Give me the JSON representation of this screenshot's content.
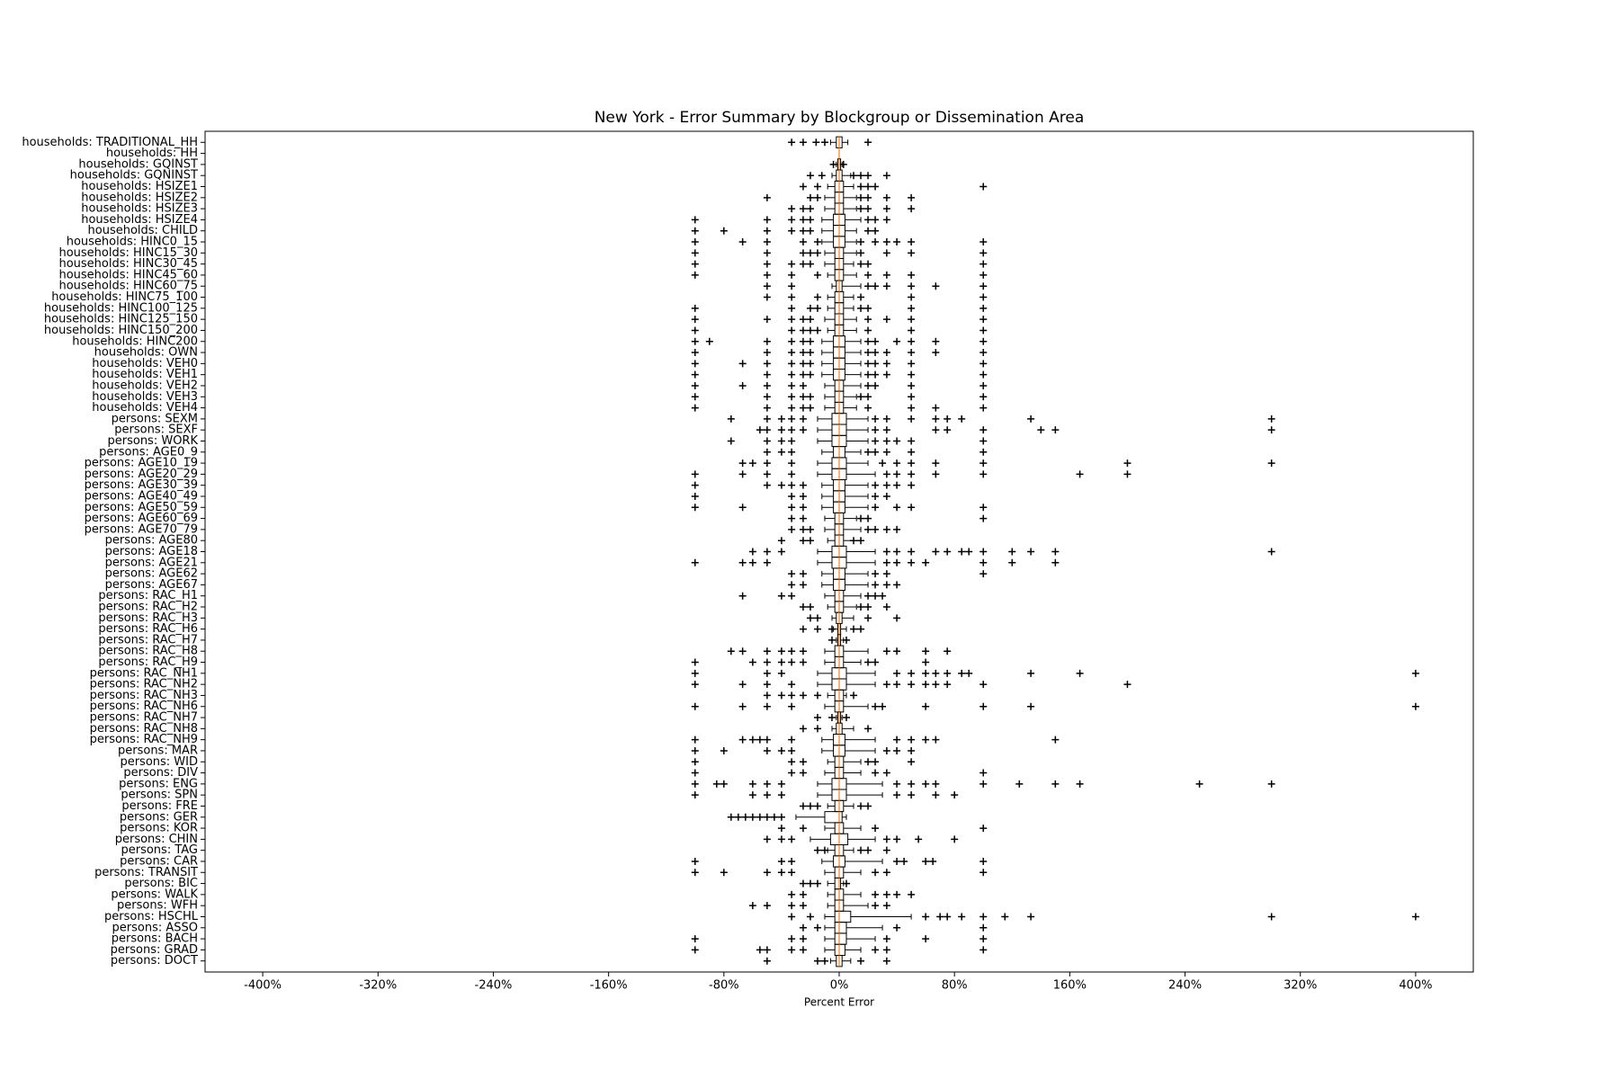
{
  "chart_data": {
    "type": "boxplot",
    "orientation": "horizontal",
    "title": "New York - Error Summary by Blockgroup or Dissemination Area",
    "xlabel": "Percent Error",
    "xlim": [
      -440,
      440
    ],
    "xticks": [
      {
        "value": -400,
        "label": "-400%"
      },
      {
        "value": -320,
        "label": "-320%"
      },
      {
        "value": -240,
        "label": "-240%"
      },
      {
        "value": -160,
        "label": "-160%"
      },
      {
        "value": -80,
        "label": "-80%"
      },
      {
        "value": 0,
        "label": "0%"
      },
      {
        "value": 80,
        "label": "80%"
      },
      {
        "value": 160,
        "label": "160%"
      },
      {
        "value": 240,
        "label": "240%"
      },
      {
        "value": 320,
        "label": "320%"
      },
      {
        "value": 400,
        "label": "400%"
      }
    ],
    "box_color": "#000000",
    "median_color": "#ff7f0e",
    "flier_color": "#000000",
    "categories": [
      "households: TRADITIONAL_HH",
      "households: HH",
      "households: GQINST",
      "households: GQNINST",
      "households: HSIZE1",
      "households: HSIZE2",
      "households: HSIZE3",
      "households: HSIZE4",
      "households: CHILD",
      "households: HINC0_15",
      "households: HINC15_30",
      "households: HINC30_45",
      "households: HINC45_60",
      "households: HINC60_75",
      "households: HINC75_100",
      "households: HINC100_125",
      "households: HINC125_150",
      "households: HINC150_200",
      "households: HINC200",
      "households: OWN",
      "households: VEH0",
      "households: VEH1",
      "households: VEH2",
      "households: VEH3",
      "households: VEH4",
      "persons: SEXM",
      "persons: SEXF",
      "persons: WORK",
      "persons: AGE0_9",
      "persons: AGE10_19",
      "persons: AGE20_29",
      "persons: AGE30_39",
      "persons: AGE40_49",
      "persons: AGE50_59",
      "persons: AGE60_69",
      "persons: AGE70_79",
      "persons: AGE80",
      "persons: AGE18",
      "persons: AGE21",
      "persons: AGE62",
      "persons: AGE67",
      "persons: RAC_H1",
      "persons: RAC_H2",
      "persons: RAC_H3",
      "persons: RAC_H6",
      "persons: RAC_H7",
      "persons: RAC_H8",
      "persons: RAC_H9",
      "persons: RAC_NH1",
      "persons: RAC_NH2",
      "persons: RAC_NH3",
      "persons: RAC_NH6",
      "persons: RAC_NH7",
      "persons: RAC_NH8",
      "persons: RAC_NH9",
      "persons: MAR",
      "persons: WID",
      "persons: DIV",
      "persons: ENG",
      "persons: SPN",
      "persons: FRE",
      "persons: GER",
      "persons: KOR",
      "persons: CHIN",
      "persons: TAG",
      "persons: CAR",
      "persons: TRANSIT",
      "persons: BIC",
      "persons: WALK",
      "persons: WFH",
      "persons: HSCHL",
      "persons: ASSO",
      "persons: BACH",
      "persons: GRAD",
      "persons: DOCT"
    ],
    "whislo": [
      -6,
      0,
      -2,
      -5,
      -8,
      -10,
      -10,
      -12,
      -12,
      -12,
      -10,
      -10,
      -8,
      -5,
      -8,
      -8,
      -10,
      -8,
      -12,
      -12,
      -12,
      -12,
      -10,
      -10,
      -10,
      -15,
      -15,
      -15,
      -12,
      -15,
      -15,
      -12,
      -12,
      -12,
      -10,
      -10,
      -8,
      -15,
      -15,
      -12,
      -12,
      -10,
      -8,
      -5,
      -4,
      -2,
      -10,
      -10,
      -15,
      -15,
      -8,
      -10,
      -2,
      -5,
      -12,
      -12,
      -8,
      -10,
      -15,
      -15,
      -8,
      -30,
      -10,
      -20,
      -8,
      -12,
      -10,
      -8,
      -8,
      -8,
      -10,
      -10,
      -10,
      -10,
      -6
    ],
    "q1": [
      -2,
      0,
      -1,
      -2,
      -3,
      -3,
      -3,
      -4,
      -4,
      -4,
      -3,
      -3,
      -3,
      -2,
      -3,
      -3,
      -3,
      -3,
      -4,
      -4,
      -4,
      -4,
      -3,
      -3,
      -3,
      -5,
      -5,
      -5,
      -4,
      -5,
      -5,
      -4,
      -4,
      -4,
      -3,
      -3,
      -3,
      -5,
      -5,
      -4,
      -4,
      -3,
      -3,
      -2,
      -1,
      -1,
      -3,
      -3,
      -5,
      -5,
      -3,
      -3,
      -1,
      -2,
      -4,
      -4,
      -3,
      -3,
      -5,
      -5,
      -3,
      -10,
      -3,
      -6,
      -3,
      -4,
      -3,
      -3,
      -3,
      -3,
      -3,
      -3,
      -3,
      -3,
      -2
    ],
    "median": [
      0,
      0,
      0,
      0,
      0,
      0,
      0,
      0,
      0,
      0,
      0,
      0,
      0,
      0,
      0,
      0,
      0,
      0,
      0,
      0,
      0,
      0,
      0,
      0,
      0,
      0,
      0,
      0,
      0,
      0,
      0,
      0,
      0,
      0,
      0,
      0,
      0,
      0,
      0,
      0,
      0,
      0,
      0,
      0,
      0,
      0,
      0,
      0,
      0,
      0,
      0,
      0,
      0,
      0,
      0,
      0,
      0,
      0,
      0,
      0,
      0,
      0,
      0,
      0,
      0,
      0,
      0,
      0,
      0,
      0,
      0,
      0,
      0,
      0,
      0
    ],
    "q3": [
      2,
      0,
      1,
      2,
      3,
      3,
      3,
      4,
      4,
      4,
      3,
      3,
      3,
      2,
      3,
      3,
      3,
      3,
      4,
      4,
      4,
      4,
      3,
      3,
      3,
      5,
      5,
      5,
      4,
      5,
      5,
      4,
      4,
      4,
      3,
      3,
      3,
      5,
      5,
      4,
      4,
      3,
      3,
      2,
      1,
      1,
      3,
      3,
      5,
      5,
      3,
      3,
      1,
      2,
      4,
      4,
      3,
      3,
      5,
      5,
      3,
      2,
      3,
      6,
      3,
      4,
      3,
      1,
      3,
      3,
      8,
      5,
      5,
      4,
      2
    ],
    "whishi": [
      6,
      0,
      2,
      8,
      10,
      12,
      12,
      15,
      12,
      12,
      12,
      10,
      12,
      15,
      10,
      10,
      12,
      12,
      15,
      15,
      15,
      15,
      15,
      12,
      12,
      20,
      20,
      20,
      15,
      20,
      25,
      20,
      20,
      20,
      12,
      15,
      10,
      25,
      25,
      20,
      20,
      15,
      12,
      10,
      5,
      3,
      20,
      15,
      25,
      25,
      5,
      20,
      2,
      10,
      25,
      25,
      15,
      15,
      30,
      30,
      10,
      5,
      15,
      25,
      10,
      30,
      15,
      3,
      15,
      20,
      50,
      30,
      25,
      15,
      8
    ],
    "fliers": [
      [
        -33,
        -25,
        -16,
        -10,
        20
      ],
      [],
      [
        -4,
        3
      ],
      [
        -20,
        -12,
        10,
        15,
        20,
        33
      ],
      [
        -25,
        -15,
        15,
        20,
        25,
        100
      ],
      [
        -50,
        -20,
        -15,
        15,
        20,
        33,
        50
      ],
      [
        -33,
        -25,
        -20,
        15,
        20,
        33,
        50
      ],
      [
        -100,
        -50,
        -33,
        -25,
        -20,
        20,
        25,
        33
      ],
      [
        -100,
        -80,
        -50,
        -33,
        -25,
        -20,
        20,
        25
      ],
      [
        -100,
        -67,
        -50,
        -25,
        -15,
        15,
        25,
        33,
        40,
        50,
        100
      ],
      [
        -100,
        -50,
        -25,
        -20,
        -15,
        15,
        33,
        50,
        100
      ],
      [
        -100,
        -50,
        -33,
        -25,
        -20,
        15,
        20,
        100
      ],
      [
        -100,
        -50,
        -33,
        -15,
        20,
        33,
        50,
        100
      ],
      [
        -50,
        -33,
        20,
        25,
        33,
        50,
        67,
        100
      ],
      [
        -50,
        -33,
        -15,
        15,
        50,
        100
      ],
      [
        -100,
        -33,
        -20,
        -15,
        15,
        20,
        50,
        100
      ],
      [
        -100,
        -50,
        -33,
        -25,
        -20,
        20,
        33,
        50,
        100
      ],
      [
        -100,
        -33,
        -25,
        -20,
        -15,
        20,
        50,
        100
      ],
      [
        -100,
        -90,
        -50,
        -33,
        -25,
        -20,
        20,
        25,
        40,
        50,
        67,
        100
      ],
      [
        -100,
        -50,
        -33,
        -25,
        -20,
        20,
        25,
        33,
        50,
        67,
        100
      ],
      [
        -100,
        -67,
        -50,
        -33,
        -25,
        -20,
        20,
        25,
        33,
        50,
        100
      ],
      [
        -100,
        -50,
        -33,
        -25,
        -20,
        20,
        25,
        33,
        50,
        100
      ],
      [
        -100,
        -67,
        -50,
        -33,
        -25,
        20,
        25,
        50,
        100
      ],
      [
        -100,
        -50,
        -33,
        -25,
        -20,
        15,
        20,
        50,
        100
      ],
      [
        -100,
        -50,
        -33,
        -25,
        -20,
        20,
        50,
        67,
        100
      ],
      [
        -75,
        -50,
        -40,
        -33,
        -25,
        25,
        33,
        50,
        67,
        75,
        85,
        133,
        300
      ],
      [
        -55,
        -50,
        -40,
        -33,
        -25,
        25,
        33,
        67,
        75,
        100,
        140,
        150,
        300
      ],
      [
        -75,
        -50,
        -40,
        -33,
        25,
        33,
        40,
        50,
        100
      ],
      [
        -50,
        -40,
        -33,
        20,
        25,
        33,
        50,
        100
      ],
      [
        -67,
        -60,
        -50,
        -33,
        30,
        40,
        50,
        67,
        100,
        200,
        300
      ],
      [
        -100,
        -67,
        -50,
        -33,
        33,
        40,
        50,
        67,
        100,
        167,
        200
      ],
      [
        -100,
        -50,
        -40,
        -33,
        -25,
        25,
        33,
        40,
        50
      ],
      [
        -100,
        -33,
        -25,
        25,
        33
      ],
      [
        -100,
        -67,
        -33,
        -25,
        25,
        40,
        50,
        100
      ],
      [
        -33,
        -25,
        15,
        20,
        100
      ],
      [
        -33,
        -25,
        -20,
        20,
        25,
        33,
        40
      ],
      [
        -40,
        -25,
        -20,
        10,
        15
      ],
      [
        -60,
        -50,
        -40,
        33,
        40,
        50,
        67,
        75,
        85,
        90,
        100,
        120,
        133,
        150,
        300
      ],
      [
        -100,
        -67,
        -60,
        -50,
        33,
        40,
        50,
        60,
        100,
        120,
        150
      ],
      [
        -33,
        -25,
        25,
        33,
        100
      ],
      [
        -33,
        -25,
        25,
        33,
        40
      ],
      [
        -67,
        -40,
        -33,
        20,
        25,
        30
      ],
      [
        -25,
        -20,
        15,
        20,
        33
      ],
      [
        -20,
        -15,
        20,
        40
      ],
      [
        -25,
        -15,
        -5,
        10,
        15
      ],
      [
        -5,
        5
      ],
      [
        -75,
        -67,
        -50,
        -40,
        -33,
        -25,
        33,
        40,
        60,
        75
      ],
      [
        -100,
        -60,
        -50,
        -40,
        -33,
        -25,
        20,
        25,
        60
      ],
      [
        -100,
        -50,
        -40,
        40,
        50,
        60,
        67,
        75,
        85,
        90,
        133,
        167,
        400
      ],
      [
        -100,
        -67,
        -50,
        -33,
        33,
        40,
        50,
        60,
        67,
        75,
        100,
        200
      ],
      [
        -50,
        -40,
        -33,
        -25,
        -15,
        10
      ],
      [
        -100,
        -67,
        -50,
        -33,
        25,
        30,
        60,
        100,
        133,
        400
      ],
      [
        -15,
        -5,
        5
      ],
      [
        -25,
        -15,
        20
      ],
      [
        -100,
        -67,
        -60,
        -55,
        -50,
        -33,
        40,
        50,
        60,
        67,
        150
      ],
      [
        -100,
        -80,
        -50,
        -40,
        -33,
        33,
        40,
        50
      ],
      [
        -100,
        -33,
        -25,
        20,
        25,
        50
      ],
      [
        -100,
        -33,
        -25,
        25,
        33,
        100
      ],
      [
        -100,
        -85,
        -80,
        -60,
        -50,
        -40,
        40,
        50,
        60,
        67,
        100,
        125,
        150,
        167,
        250,
        300
      ],
      [
        -100,
        -60,
        -50,
        -40,
        40,
        50,
        67,
        80
      ],
      [
        -25,
        -20,
        -15,
        15,
        20
      ],
      [
        -75,
        -70,
        -65,
        -60,
        -55,
        -50,
        -45,
        -40
      ],
      [
        -40,
        -25,
        25,
        100
      ],
      [
        -50,
        -40,
        -33,
        33,
        40,
        55,
        80
      ],
      [
        -15,
        -10,
        15,
        20,
        33
      ],
      [
        -100,
        -40,
        -33,
        40,
        45,
        60,
        65,
        100
      ],
      [
        -100,
        -80,
        -50,
        -40,
        -33,
        25,
        33,
        100
      ],
      [
        -25,
        -20,
        -15,
        5
      ],
      [
        -33,
        -25,
        25,
        33,
        40,
        50
      ],
      [
        -60,
        -50,
        -33,
        -25,
        25,
        33
      ],
      [
        -33,
        -20,
        60,
        70,
        75,
        85,
        100,
        115,
        133,
        300,
        400
      ],
      [
        -25,
        -15,
        40,
        100
      ],
      [
        -100,
        -33,
        -25,
        33,
        60,
        100
      ],
      [
        -100,
        -55,
        -50,
        -33,
        -25,
        25,
        33,
        100
      ],
      [
        -50,
        -15,
        -10,
        15,
        33
      ]
    ]
  }
}
